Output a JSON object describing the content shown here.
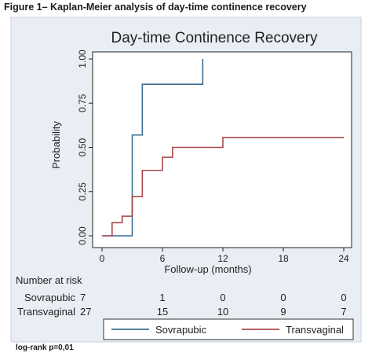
{
  "figure_caption": "Figure 1– Kaplan-Meier analysis of day-time continence recovery",
  "footnote": "log-rank p=0,01",
  "colors": {
    "sovrapubic": "#3c6e92",
    "transvaginal": "#a8484c",
    "panel_background": "#e8eef3"
  },
  "chart_data": {
    "type": "line",
    "subtype": "kaplan-meier-step",
    "title": "Day-time Continence Recovery",
    "xlabel": "Follow-up (months)",
    "ylabel": "Probability",
    "xlim": [
      0,
      24
    ],
    "ylim": [
      0,
      1
    ],
    "x_ticks": [
      0,
      6,
      12,
      18,
      24
    ],
    "y_ticks": [
      "0.00",
      "0.25",
      "0.50",
      "0.75",
      "1.00"
    ],
    "grid": false,
    "legend_position": "bottom",
    "series": [
      {
        "name": "Sovrapubic",
        "color": "#3c6e92",
        "x": [
          0,
          2.2,
          3,
          3.4,
          4,
          10,
          10
        ],
        "y": [
          0,
          0,
          0.57,
          0.57,
          0.857,
          0.857,
          1.0
        ]
      },
      {
        "name": "Transvaginal",
        "color": "#a8484c",
        "x": [
          0,
          1,
          2,
          3,
          4,
          6,
          7,
          8,
          12,
          24
        ],
        "y": [
          0,
          0.074,
          0.111,
          0.222,
          0.37,
          0.444,
          0.5,
          0.5,
          0.556,
          0.556
        ]
      }
    ],
    "risk_table": {
      "header": "Number at risk",
      "time_points": [
        0,
        6,
        12,
        18,
        24
      ],
      "rows": [
        {
          "label": "Sovrapubic",
          "values": [
            "7",
            "1",
            "0",
            "0",
            "0"
          ]
        },
        {
          "label": "Transvaginal",
          "values": [
            "27",
            "15",
            "10",
            "9",
            "7"
          ]
        }
      ]
    }
  }
}
